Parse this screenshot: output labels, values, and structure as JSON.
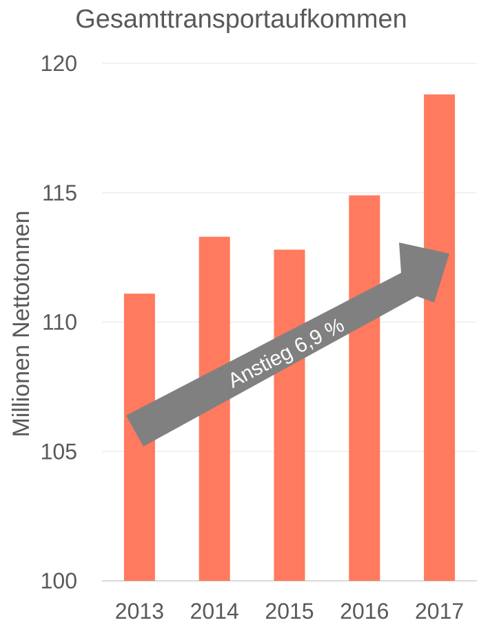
{
  "chart_data": {
    "type": "bar",
    "title": "Gesamttransportaufkommen",
    "xlabel": "",
    "ylabel": "Millionen Nettotonnen",
    "categories": [
      "2013",
      "2014",
      "2015",
      "2016",
      "2017"
    ],
    "values": [
      111.1,
      113.3,
      112.8,
      114.9,
      118.8
    ],
    "ylim": [
      100,
      120
    ],
    "yticks": [
      "100",
      "105",
      "110",
      "115",
      "120"
    ],
    "grid": true,
    "bar_color": "#FF7A5E",
    "annotation": {
      "text": "Anstieg 6,9 %",
      "color": "#808080"
    }
  }
}
